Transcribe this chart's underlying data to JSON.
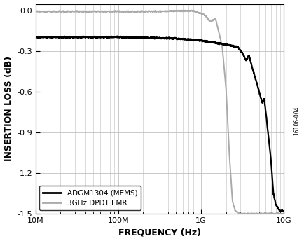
{
  "title": "",
  "xlabel": "FREQUENCY (Hz)",
  "ylabel": "INSERTION LOSS (dB)",
  "xlim": [
    10000000.0,
    10000000000.0
  ],
  "ylim": [
    -1.5,
    0.05
  ],
  "yticks": [
    0,
    -0.3,
    -0.6,
    -0.9,
    -1.2,
    -1.5
  ],
  "ylabel_fontsize": 9,
  "xlabel_fontsize": 9,
  "tick_fontsize": 8,
  "legend_labels": [
    "ADGM1304 (MEMS)",
    "3GHz DPDT EMR"
  ],
  "mems_color": "#000000",
  "emr_color": "#aaaaaa",
  "background_color": "#ffffff",
  "grid_color": "#c0c0c0",
  "watermark": "16106-004"
}
